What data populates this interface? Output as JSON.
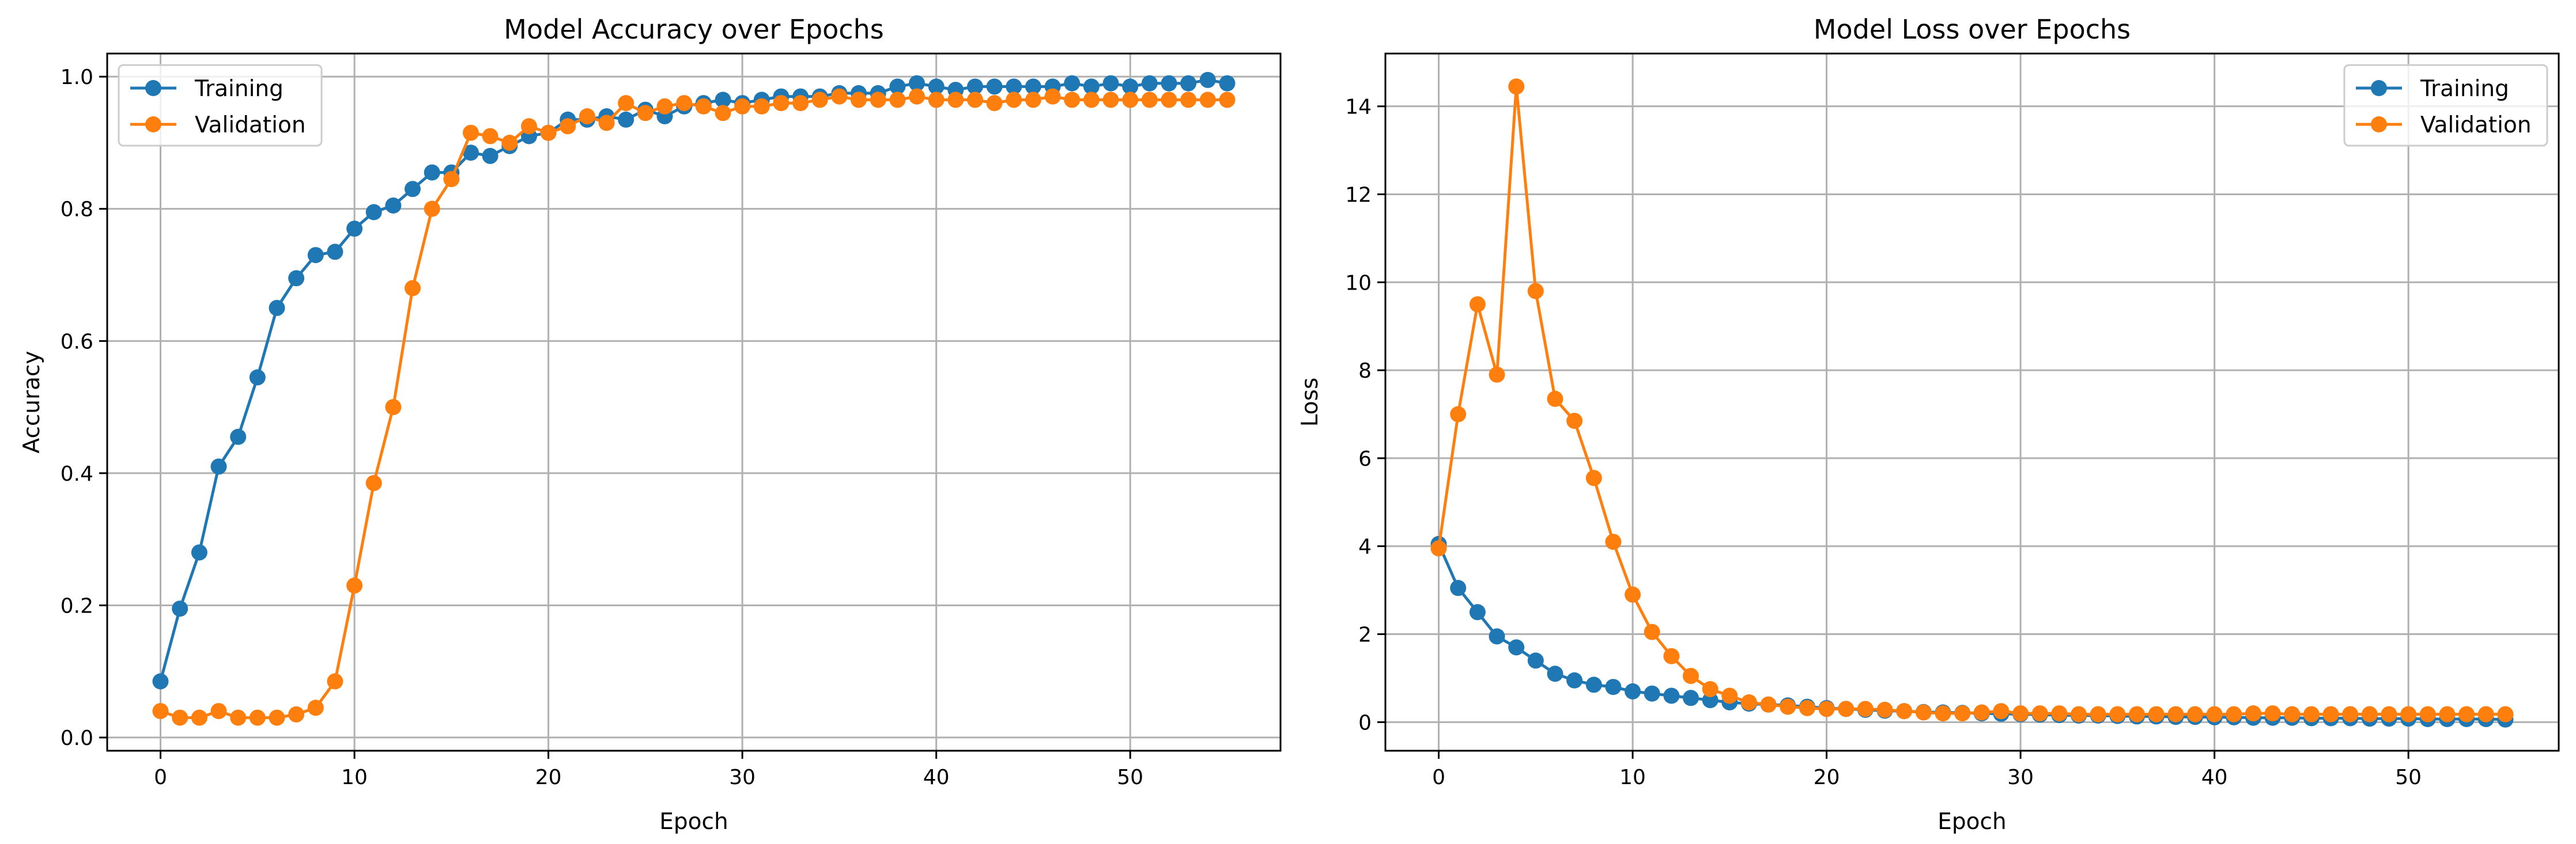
{
  "colors": {
    "training": "#1f77b4",
    "validation": "#ff7f0e"
  },
  "chart_data": [
    {
      "type": "line",
      "title": "Model Accuracy over Epochs",
      "xlabel": "Epoch",
      "ylabel": "Accuracy",
      "xlim": [
        -2.75,
        57.75
      ],
      "ylim": [
        -0.02,
        1.035
      ],
      "xticks": [
        0,
        10,
        20,
        30,
        40,
        50
      ],
      "yticks": [
        0.0,
        0.2,
        0.4,
        0.6,
        0.8,
        1.0
      ],
      "ytick_labels": [
        "0.0",
        "0.2",
        "0.4",
        "0.6",
        "0.8",
        "1.0"
      ],
      "grid": true,
      "legend": "upper-left",
      "x": [
        0,
        1,
        2,
        3,
        4,
        5,
        6,
        7,
        8,
        9,
        10,
        11,
        12,
        13,
        14,
        15,
        16,
        17,
        18,
        19,
        20,
        21,
        22,
        23,
        24,
        25,
        26,
        27,
        28,
        29,
        30,
        31,
        32,
        33,
        34,
        35,
        36,
        37,
        38,
        39,
        40,
        41,
        42,
        43,
        44,
        45,
        46,
        47,
        48,
        49,
        50,
        51,
        52,
        53,
        54,
        55
      ],
      "series": [
        {
          "name": "Training",
          "color": "#1f77b4",
          "values": [
            0.085,
            0.195,
            0.28,
            0.41,
            0.455,
            0.545,
            0.65,
            0.695,
            0.73,
            0.735,
            0.77,
            0.795,
            0.805,
            0.83,
            0.855,
            0.855,
            0.885,
            0.88,
            0.895,
            0.91,
            0.915,
            0.935,
            0.935,
            0.94,
            0.935,
            0.95,
            0.94,
            0.955,
            0.96,
            0.965,
            0.96,
            0.965,
            0.97,
            0.97,
            0.97,
            0.975,
            0.975,
            0.975,
            0.985,
            0.99,
            0.985,
            0.98,
            0.985,
            0.985,
            0.985,
            0.985,
            0.985,
            0.99,
            0.985,
            0.99,
            0.985,
            0.99,
            0.99,
            0.99,
            0.995,
            0.99
          ]
        },
        {
          "name": "Validation",
          "color": "#ff7f0e",
          "values": [
            0.04,
            0.03,
            0.03,
            0.04,
            0.03,
            0.03,
            0.03,
            0.035,
            0.045,
            0.085,
            0.23,
            0.385,
            0.5,
            0.68,
            0.8,
            0.845,
            0.915,
            0.91,
            0.9,
            0.925,
            0.915,
            0.925,
            0.94,
            0.93,
            0.96,
            0.945,
            0.955,
            0.96,
            0.955,
            0.945,
            0.955,
            0.955,
            0.96,
            0.96,
            0.965,
            0.97,
            0.965,
            0.965,
            0.965,
            0.97,
            0.965,
            0.965,
            0.965,
            0.96,
            0.965,
            0.965,
            0.97,
            0.965,
            0.965,
            0.965,
            0.965,
            0.965,
            0.965,
            0.965,
            0.965,
            0.965
          ]
        }
      ]
    },
    {
      "type": "line",
      "title": "Model Loss over Epochs",
      "xlabel": "Epoch",
      "ylabel": "Loss",
      "xlim": [
        -2.75,
        57.75
      ],
      "ylim": [
        -0.65,
        15.2
      ],
      "xticks": [
        0,
        10,
        20,
        30,
        40,
        50
      ],
      "yticks": [
        0,
        2,
        4,
        6,
        8,
        10,
        12,
        14
      ],
      "ytick_labels": [
        "0",
        "2",
        "4",
        "6",
        "8",
        "10",
        "12",
        "14"
      ],
      "grid": true,
      "legend": "upper-right",
      "x": [
        0,
        1,
        2,
        3,
        4,
        5,
        6,
        7,
        8,
        9,
        10,
        11,
        12,
        13,
        14,
        15,
        16,
        17,
        18,
        19,
        20,
        21,
        22,
        23,
        24,
        25,
        26,
        27,
        28,
        29,
        30,
        31,
        32,
        33,
        34,
        35,
        36,
        37,
        38,
        39,
        40,
        41,
        42,
        43,
        44,
        45,
        46,
        47,
        48,
        49,
        50,
        51,
        52,
        53,
        54,
        55
      ],
      "series": [
        {
          "name": "Training",
          "color": "#1f77b4",
          "values": [
            4.05,
            3.05,
            2.5,
            1.95,
            1.7,
            1.4,
            1.1,
            0.95,
            0.85,
            0.8,
            0.7,
            0.65,
            0.6,
            0.55,
            0.5,
            0.45,
            0.42,
            0.4,
            0.38,
            0.35,
            0.32,
            0.3,
            0.28,
            0.26,
            0.25,
            0.23,
            0.22,
            0.21,
            0.2,
            0.19,
            0.18,
            0.17,
            0.16,
            0.15,
            0.15,
            0.14,
            0.13,
            0.13,
            0.12,
            0.12,
            0.11,
            0.11,
            0.1,
            0.1,
            0.1,
            0.09,
            0.09,
            0.09,
            0.08,
            0.08,
            0.08,
            0.07,
            0.07,
            0.07,
            0.07,
            0.06
          ]
        },
        {
          "name": "Validation",
          "color": "#ff7f0e",
          "values": [
            3.95,
            7.0,
            9.5,
            7.9,
            14.45,
            9.8,
            7.35,
            6.85,
            5.55,
            4.1,
            2.9,
            2.05,
            1.5,
            1.05,
            0.75,
            0.6,
            0.45,
            0.4,
            0.35,
            0.32,
            0.3,
            0.3,
            0.3,
            0.28,
            0.25,
            0.22,
            0.2,
            0.2,
            0.22,
            0.25,
            0.2,
            0.2,
            0.2,
            0.18,
            0.18,
            0.18,
            0.18,
            0.18,
            0.18,
            0.18,
            0.18,
            0.18,
            0.2,
            0.2,
            0.18,
            0.18,
            0.18,
            0.18,
            0.18,
            0.18,
            0.18,
            0.18,
            0.18,
            0.18,
            0.18,
            0.18
          ]
        }
      ]
    }
  ]
}
